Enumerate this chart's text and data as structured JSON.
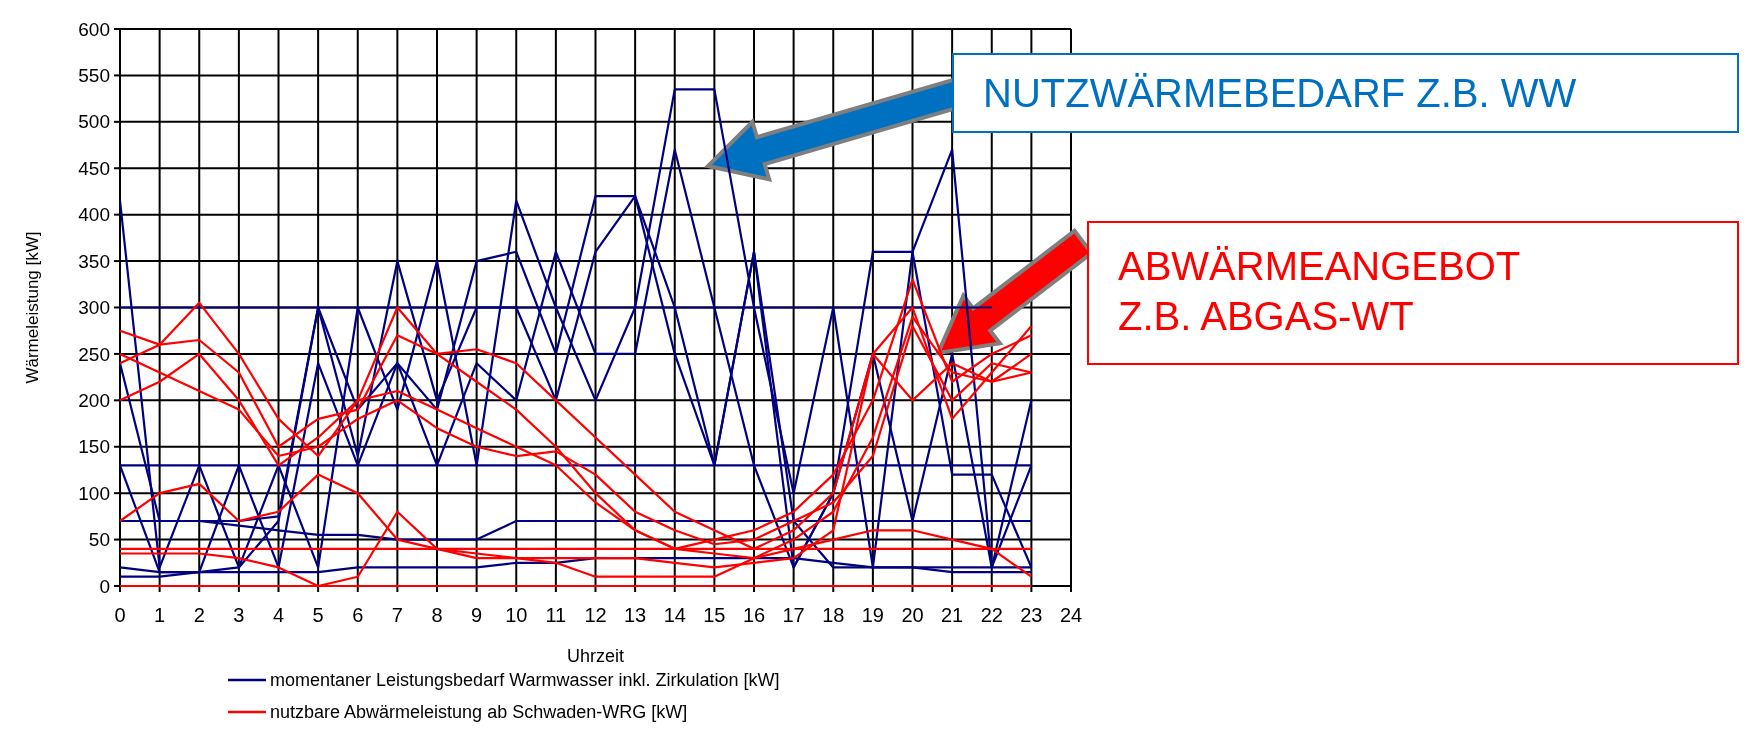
{
  "chart_data": {
    "type": "line",
    "xlabel": "Uhrzeit",
    "ylabel": "Wärmeleistung [kW]",
    "x": [
      0,
      1,
      2,
      3,
      4,
      5,
      6,
      7,
      8,
      9,
      10,
      11,
      12,
      13,
      14,
      15,
      16,
      17,
      18,
      19,
      20,
      21,
      22,
      23
    ],
    "xlim": [
      0,
      24
    ],
    "xticks": [
      0,
      1,
      2,
      3,
      4,
      5,
      6,
      7,
      8,
      9,
      10,
      11,
      12,
      13,
      14,
      15,
      16,
      17,
      18,
      19,
      20,
      21,
      22,
      23,
      24
    ],
    "ylim": [
      0,
      600
    ],
    "yticks": [
      0,
      50,
      100,
      150,
      200,
      250,
      300,
      350,
      400,
      450,
      500,
      550,
      600
    ],
    "grid": true,
    "legend": "bottom",
    "marker": "none",
    "line_style": "solid",
    "series": [
      {
        "name": "momentaner Leistungsbedarf Warmwasser inkl. Zirkulation [kW]",
        "color": "#000080",
        "values": [
          300,
          300,
          300,
          300,
          300,
          300,
          300,
          300,
          300,
          300,
          300,
          300,
          300,
          300,
          300,
          300,
          300,
          300,
          300,
          300,
          300,
          300,
          300,
          null
        ]
      },
      {
        "color": "#000080",
        "values": [
          415,
          20,
          130,
          20,
          130,
          20,
          300,
          190,
          350,
          130,
          415,
          300,
          200,
          300,
          535,
          535,
          300,
          100,
          300,
          20,
          360,
          470,
          20,
          200
        ]
      },
      {
        "color": "#000080",
        "values": [
          240,
          70,
          70,
          70,
          75,
          300,
          190,
          240,
          190,
          350,
          360,
          250,
          420,
          420,
          300,
          130,
          360,
          20,
          100,
          360,
          360,
          120,
          120,
          20
        ]
      },
      {
        "color": "#000080",
        "values": [
          130,
          15,
          15,
          130,
          20,
          240,
          130,
          240,
          130,
          240,
          200,
          360,
          250,
          250,
          470,
          300,
          130,
          20,
          100,
          250,
          70,
          250,
          20,
          130
        ]
      },
      {
        "color": "#000080",
        "values": [
          70,
          70,
          70,
          65,
          60,
          55,
          55,
          50,
          50,
          50,
          70,
          70,
          70,
          70,
          70,
          70,
          70,
          70,
          70,
          70,
          70,
          70,
          70,
          70
        ]
      },
      {
        "color": "#000080",
        "values": [
          20,
          15,
          15,
          20,
          70,
          300,
          140,
          350,
          200,
          300,
          300,
          200,
          360,
          420,
          250,
          130,
          360,
          70,
          20,
          20,
          20,
          20,
          20,
          20
        ]
      },
      {
        "color": "#000080",
        "values": [
          130,
          130,
          130,
          130,
          130,
          130,
          130,
          130,
          130,
          130,
          130,
          130,
          130,
          130,
          130,
          130,
          130,
          130,
          130,
          130,
          130,
          130,
          130,
          130
        ]
      },
      {
        "color": "#000080",
        "values": [
          10,
          10,
          15,
          15,
          15,
          15,
          20,
          20,
          20,
          20,
          25,
          25,
          30,
          30,
          30,
          30,
          30,
          30,
          25,
          20,
          20,
          15,
          15,
          15
        ]
      },
      {
        "name": "nutzbare Abwärmeleistung ab Schwaden-WRG [kW]",
        "color": "#ff0000",
        "values": [
          275,
          260,
          305,
          250,
          180,
          140,
          200,
          300,
          250,
          220,
          190,
          150,
          100,
          60,
          40,
          50,
          60,
          80,
          120,
          200,
          330,
          220,
          250,
          270
        ]
      },
      {
        "color": "#ff0000",
        "values": [
          240,
          260,
          265,
          230,
          150,
          180,
          190,
          270,
          250,
          255,
          240,
          200,
          160,
          120,
          80,
          60,
          40,
          60,
          100,
          250,
          300,
          180,
          230,
          280
        ]
      },
      {
        "color": "#ff0000",
        "values": [
          200,
          220,
          250,
          200,
          130,
          160,
          200,
          210,
          190,
          170,
          150,
          130,
          90,
          60,
          40,
          35,
          30,
          50,
          80,
          160,
          290,
          230,
          220,
          250
        ]
      },
      {
        "color": "#ff0000",
        "values": [
          250,
          230,
          210,
          190,
          140,
          150,
          180,
          200,
          170,
          150,
          140,
          145,
          120,
          80,
          60,
          45,
          50,
          70,
          90,
          140,
          280,
          200,
          240,
          230
        ]
      },
      {
        "color": "#ff0000",
        "values": [
          70,
          100,
          110,
          70,
          80,
          120,
          100,
          50,
          40,
          35,
          30,
          30,
          30,
          30,
          25,
          20,
          25,
          30,
          60,
          250,
          200,
          240,
          220,
          230
        ]
      },
      {
        "color": "#ff0000",
        "values": [
          40,
          40,
          40,
          40,
          40,
          40,
          40,
          40,
          40,
          40,
          40,
          40,
          40,
          40,
          40,
          40,
          40,
          40,
          40,
          40,
          40,
          40,
          40,
          40
        ]
      },
      {
        "color": "#ff0000",
        "values": [
          35,
          35,
          35,
          30,
          20,
          0,
          10,
          80,
          40,
          30,
          30,
          25,
          10,
          10,
          10,
          10,
          30,
          40,
          50,
          60,
          60,
          50,
          40,
          10
        ]
      },
      {
        "color": "#ff0000",
        "values": [
          0,
          0,
          0,
          0,
          0,
          0,
          0,
          0,
          0,
          0,
          0,
          0,
          0,
          0,
          0,
          0,
          0,
          0,
          0,
          0,
          0,
          0,
          0,
          0
        ]
      }
    ],
    "annotations": [
      "NUTZWÄRMEBEDARF Z.B. WW",
      "ABWÄRMEANGEBOT Z.B. ABGAS-WT"
    ]
  }
}
